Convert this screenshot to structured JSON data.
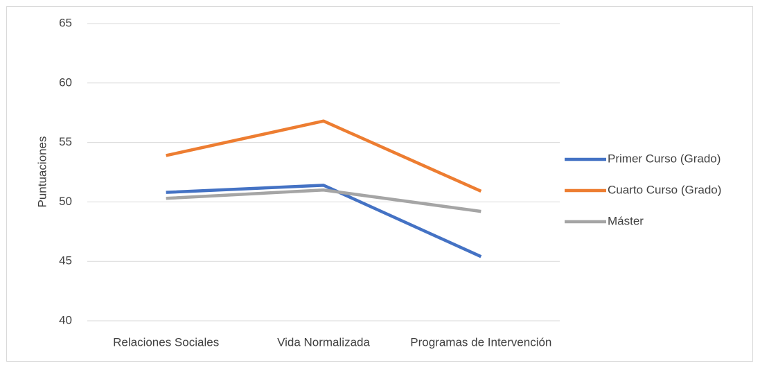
{
  "chart_data": {
    "type": "line",
    "categories": [
      "Relaciones Sociales",
      "Vida Normalizada",
      "Programas de Intervención"
    ],
    "series": [
      {
        "name": "Primer Curso (Grado)",
        "color": "#4472c4",
        "values": [
          50.8,
          51.4,
          45.4
        ]
      },
      {
        "name": "Cuarto Curso (Grado)",
        "color": "#ed7d31",
        "values": [
          53.9,
          56.8,
          50.9
        ]
      },
      {
        "name": "Máster",
        "color": "#a5a5a5",
        "values": [
          50.3,
          51.0,
          49.2
        ]
      }
    ],
    "y_label": "Puntuaciones",
    "ylim": [
      40,
      65
    ],
    "yticks": [
      40,
      45,
      50,
      55,
      60,
      65
    ],
    "grid": true,
    "legend": "right"
  }
}
